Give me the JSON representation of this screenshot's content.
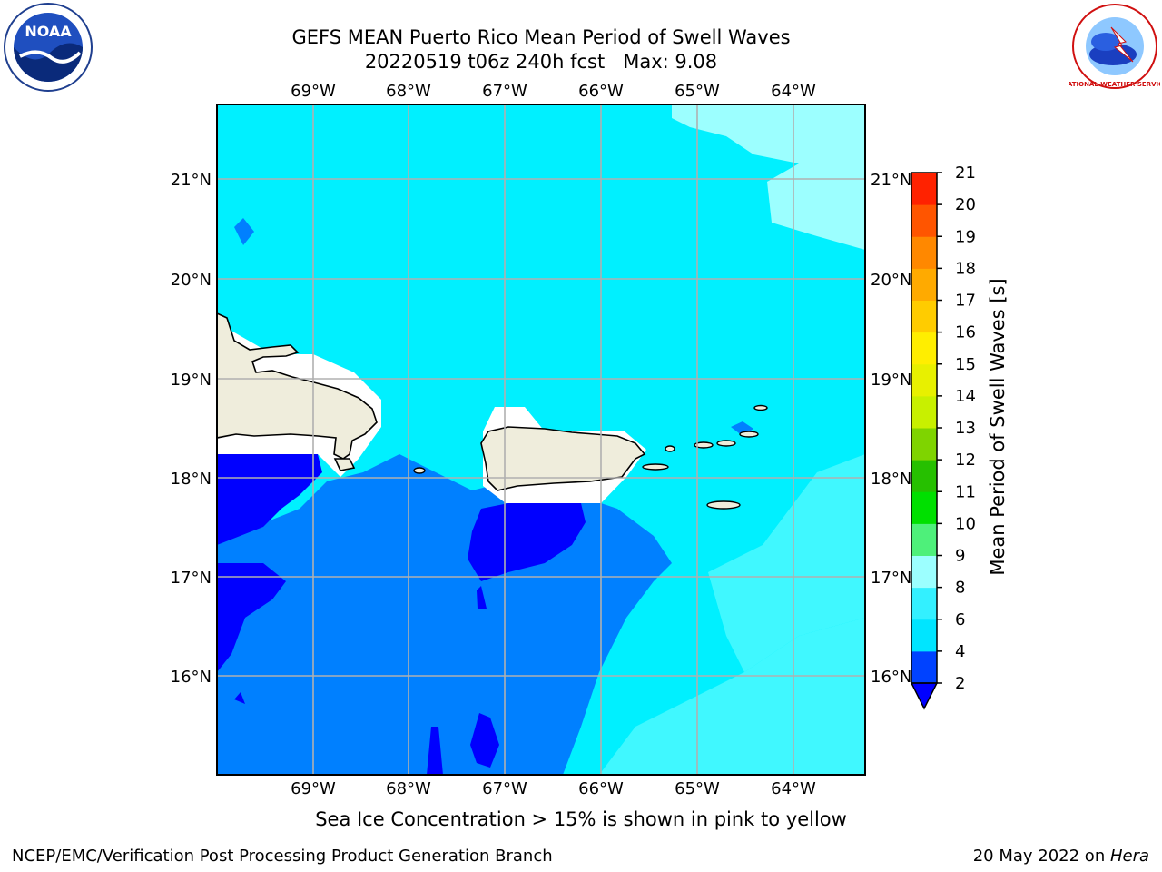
{
  "title": {
    "line1": "GEFS MEAN Puerto Rico Mean Period of Swell Waves",
    "line2": "20220519 t06z 240h fcst   Max: 9.08"
  },
  "map": {
    "lon_labels": [
      "69°W",
      "68°W",
      "67°W",
      "66°W",
      "65°W",
      "64°W"
    ],
    "lat_labels": [
      "21°N",
      "20°N",
      "19°N",
      "18°N",
      "17°N",
      "16°N"
    ]
  },
  "colorbar": {
    "label": "Mean Period of Swell Waves [s]",
    "ticks": [
      "2",
      "4",
      "6",
      "8",
      "9",
      "10",
      "11",
      "12",
      "13",
      "14",
      "15",
      "16",
      "17",
      "18",
      "19",
      "20",
      "21"
    ],
    "colors": [
      "#0042ff",
      "#00e5ff",
      "#33f0ff",
      "#9cffff",
      "#4ef07a",
      "#00e000",
      "#26c000",
      "#7fd400",
      "#c8f000",
      "#e8f000",
      "#ffee00",
      "#ffcc00",
      "#ffaa00",
      "#ff8800",
      "#ff5500",
      "#ff2200",
      "#ff0000"
    ],
    "under_color": "#0000ff"
  },
  "colors": {
    "blue_dark": "#0000ff",
    "blue_mid": "#0080ff",
    "cyan": "#00f0ff",
    "cyan_light": "#40f8ff",
    "cyan_pale": "#9cffff",
    "land": "#efeddc",
    "grid": "#b0b0b0"
  },
  "note": "Sea Ice Concentration > 15% is shown in pink to yellow",
  "footer": {
    "left": "NCEP/EMC/Verification Post Processing Product Generation Branch",
    "right_prefix": "20 May 2022 on ",
    "right_italic": "Hera"
  },
  "logos": {
    "left": "NOAA",
    "right_text": "NATIONAL WEATHER SERVICE"
  }
}
